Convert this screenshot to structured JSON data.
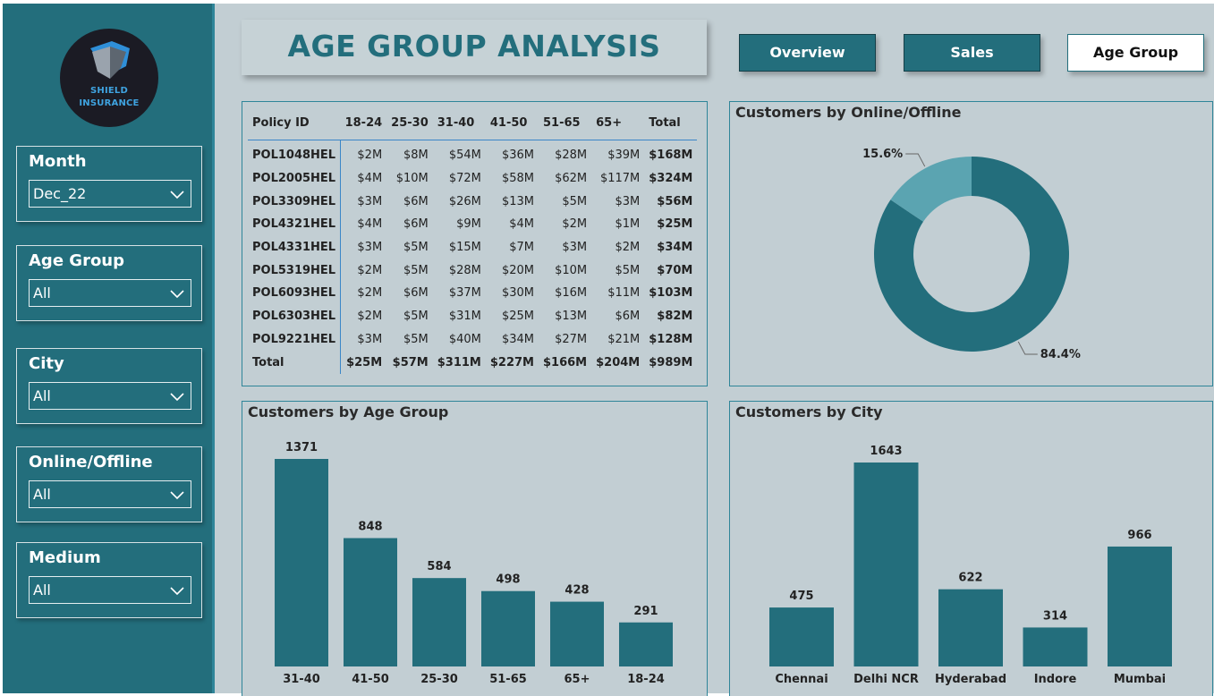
{
  "logo": {
    "line1": "SHIELD",
    "line2": "INSURANCE"
  },
  "filters": [
    {
      "label": "Month",
      "value": "Dec_22"
    },
    {
      "label": "Age Group",
      "value": "All"
    },
    {
      "label": "City",
      "value": "All"
    },
    {
      "label": "Online/Offline",
      "value": "All"
    },
    {
      "label": "Medium",
      "value": "All"
    }
  ],
  "header": {
    "title": "AGE GROUP ANALYSIS"
  },
  "nav": {
    "overview": "Overview",
    "sales": "Sales",
    "age_group": "Age Group",
    "active": "Age Group"
  },
  "matrix": {
    "headers": [
      "Policy ID",
      "18-24",
      "25-30",
      "31-40",
      "41-50",
      "51-65",
      "65+",
      "Total"
    ],
    "rows": [
      [
        "POL1048HEL",
        "$2M",
        "$8M",
        "$54M",
        "$36M",
        "$28M",
        "$39M",
        "$168M"
      ],
      [
        "POL2005HEL",
        "$4M",
        "$10M",
        "$72M",
        "$58M",
        "$62M",
        "$117M",
        "$324M"
      ],
      [
        "POL3309HEL",
        "$3M",
        "$6M",
        "$26M",
        "$13M",
        "$5M",
        "$3M",
        "$56M"
      ],
      [
        "POL4321HEL",
        "$4M",
        "$6M",
        "$9M",
        "$4M",
        "$2M",
        "$1M",
        "$25M"
      ],
      [
        "POL4331HEL",
        "$3M",
        "$5M",
        "$15M",
        "$7M",
        "$3M",
        "$2M",
        "$34M"
      ],
      [
        "POL5319HEL",
        "$2M",
        "$5M",
        "$28M",
        "$20M",
        "$10M",
        "$5M",
        "$70M"
      ],
      [
        "POL6093HEL",
        "$2M",
        "$6M",
        "$37M",
        "$30M",
        "$16M",
        "$11M",
        "$103M"
      ],
      [
        "POL6303HEL",
        "$2M",
        "$5M",
        "$31M",
        "$25M",
        "$13M",
        "$6M",
        "$82M"
      ],
      [
        "POL9221HEL",
        "$3M",
        "$5M",
        "$40M",
        "$34M",
        "$27M",
        "$21M",
        "$128M"
      ]
    ],
    "total_row": [
      "Total",
      "$25M",
      "$57M",
      "$311M",
      "$227M",
      "$166M",
      "$204M",
      "$989M"
    ]
  },
  "charts": {
    "online_offline_title": "Customers by Online/Offline",
    "age_group_title": "Customers by Age Group",
    "city_title": "Customers by City"
  },
  "colors": {
    "sidebar": "#236e7c",
    "canvas": "#c2ced3",
    "bar": "#236e7c",
    "donut_main": "#236e7c",
    "donut_secondary": "#5ba4b1"
  },
  "chart_data": [
    {
      "type": "pie",
      "title": "Customers by Online/Offline",
      "variant": "donut",
      "slices": [
        {
          "value": 84.4,
          "label": "84.4%",
          "color": "#236e7c"
        },
        {
          "value": 15.6,
          "label": "15.6%",
          "color": "#5ba4b1"
        }
      ]
    },
    {
      "type": "bar",
      "title": "Customers by Age Group",
      "categories": [
        "31-40",
        "41-50",
        "25-30",
        "51-65",
        "65+",
        "18-24"
      ],
      "values": [
        1371,
        848,
        584,
        498,
        428,
        291
      ],
      "ylim": [
        0,
        1371
      ]
    },
    {
      "type": "bar",
      "title": "Customers by City",
      "categories": [
        "Chennai",
        "Delhi NCR",
        "Hyderabad",
        "Indore",
        "Mumbai"
      ],
      "values": [
        475,
        1643,
        622,
        314,
        966
      ],
      "ylim": [
        0,
        1643
      ]
    }
  ]
}
